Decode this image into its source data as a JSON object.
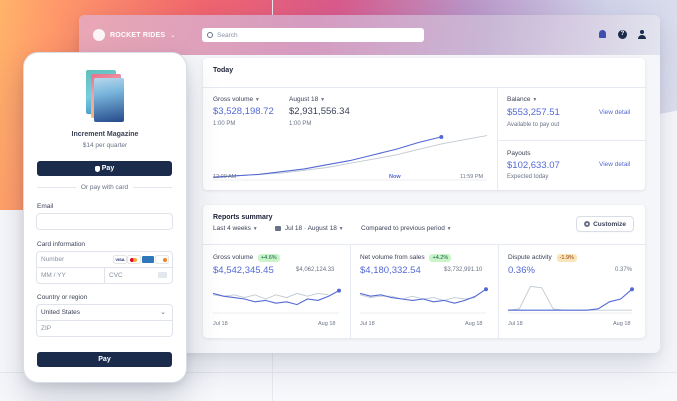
{
  "brand": {
    "name": "ROCKET RIDES"
  },
  "search": {
    "placeholder": "Search"
  },
  "icons": {
    "bell": "bell-icon",
    "help": "help-icon",
    "user": "user-icon"
  },
  "today": {
    "title": "Today",
    "gross_volume_label": "Gross volume",
    "gross_volume_value": "$3,528,198.72",
    "gross_volume_time": "1:00 PM",
    "compare_date": "August 18",
    "compare_value": "$2,931,556.34",
    "compare_time": "1:00 PM",
    "axis_start": "12:00 AM",
    "axis_now": "Now",
    "axis_end": "11:59 PM",
    "balance_label": "Balance",
    "balance_value": "$553,257.51",
    "balance_sub": "Available to pay out",
    "payouts_label": "Payouts",
    "payouts_value": "$102,633.07",
    "payouts_sub": "Expected today",
    "view_detail": "View detail"
  },
  "reports": {
    "title": "Reports summary",
    "period": "Last 4 weeks",
    "date_range": "Jul 18 · August 18",
    "compare": "Compared to previous period",
    "customize": "Customize",
    "metrics": [
      {
        "label": "Gross volume",
        "badge": "+4.6%",
        "value": "$4,542,345.45",
        "prev": "$4,062,124.33",
        "x_start": "Jul 18",
        "x_end": "Aug 18"
      },
      {
        "label": "Net volume from sales",
        "badge": "+4.2%",
        "value": "$4,180,332.54",
        "prev": "$3,732,991.10",
        "x_start": "Jul 18",
        "x_end": "Aug 18"
      },
      {
        "label": "Dispute activity",
        "badge": "-1.9%",
        "value": "0.36%",
        "prev": "0.37%",
        "x_start": "Jul 18",
        "x_end": "Aug 18"
      }
    ]
  },
  "checkout": {
    "product_name": "Increment Magazine",
    "product_price": "$14 per quarter",
    "apple_pay": "Pay",
    "or_text": "Or pay with card",
    "email_label": "Email",
    "card_label": "Card information",
    "card_number_placeholder": "Number",
    "expiry_placeholder": "MM / YY",
    "cvc_placeholder": "CVC",
    "country_label": "Country or region",
    "country_value": "United States",
    "zip_placeholder": "ZIP",
    "pay_button": "Pay",
    "card_brand_visa": "VISA"
  },
  "chart_data": [
    {
      "type": "line",
      "series": [
        {
          "values": [
            2,
            3,
            4,
            6,
            8,
            11,
            14,
            18,
            22,
            27,
            31
          ]
        },
        {
          "values": [
            2,
            3,
            4,
            5,
            7,
            9,
            12,
            15,
            18,
            22,
            26,
            29,
            32
          ]
        }
      ]
    },
    {
      "type": "line",
      "series": [
        {
          "values": [
            14,
            12,
            11,
            10,
            8,
            9,
            7,
            8,
            6,
            10,
            9,
            12,
            16
          ]
        },
        {
          "values": [
            13,
            12,
            13,
            11,
            13,
            10,
            13,
            11,
            14,
            12,
            14,
            13
          ]
        }
      ]
    },
    {
      "type": "line",
      "series": [
        {
          "values": [
            14,
            12,
            13,
            11,
            10,
            9,
            10,
            8,
            9,
            7,
            9,
            12,
            17
          ]
        },
        {
          "values": [
            13,
            11,
            12,
            12,
            10,
            12,
            10,
            11,
            9,
            11,
            10,
            11
          ]
        }
      ]
    },
    {
      "type": "line",
      "series": [
        {
          "values": [
            2,
            2,
            2,
            2,
            2,
            2,
            2,
            2,
            3,
            8,
            10,
            17
          ]
        },
        {
          "values": [
            2,
            3,
            19,
            18,
            3,
            2,
            2,
            2,
            2,
            2,
            2,
            2
          ]
        }
      ]
    }
  ]
}
